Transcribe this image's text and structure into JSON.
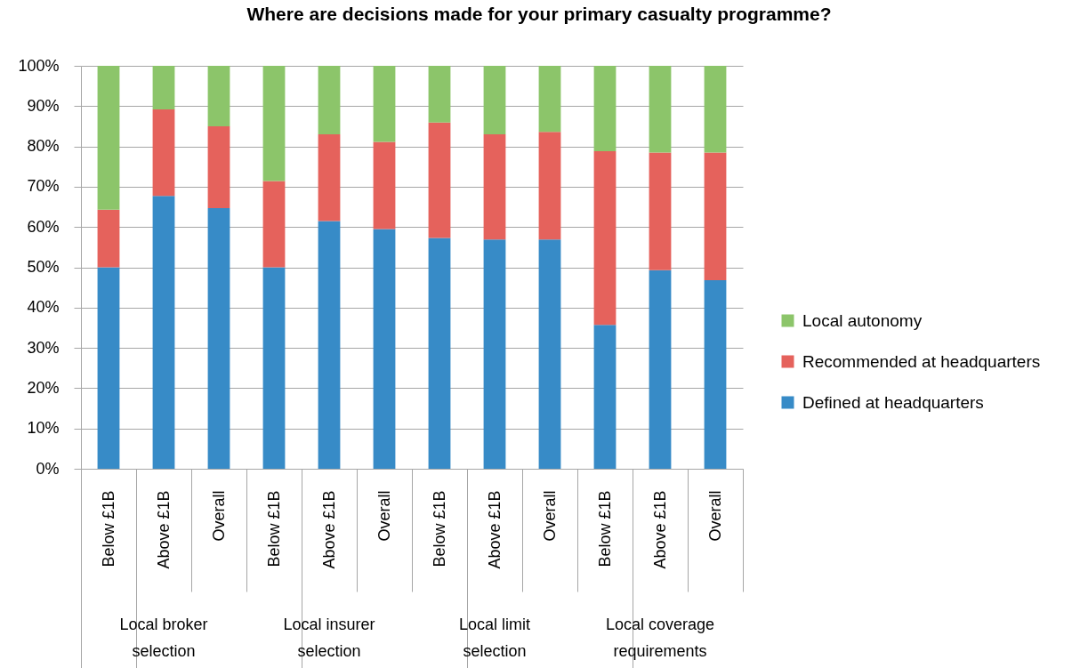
{
  "chart_data": {
    "type": "bar",
    "title": "Where are decisions made for your primary casualty programme?",
    "categories": [
      "Below £1B",
      "Above £1B",
      "Overall",
      "Below £1B",
      "Above £1B",
      "Overall",
      "Below £1B",
      "Above £1B",
      "Overall",
      "Below £1B",
      "Above £1B",
      "Overall"
    ],
    "series": [
      {
        "name": "Defined at headquarters",
        "color": "#378bc7",
        "values": [
          50,
          67.7,
          64.7,
          50,
          61.5,
          59.5,
          57.3,
          56.9,
          56.9,
          35.7,
          49.3,
          46.8
        ]
      },
      {
        "name": "Recommended at headquarters",
        "color": "#e5625c",
        "values": [
          14.3,
          21.5,
          20.3,
          21.4,
          21.5,
          21.6,
          28.6,
          26.1,
          26.7,
          43.1,
          29.2,
          31.7
        ]
      },
      {
        "name": "Local autonomy",
        "color": "#8cc56a",
        "values": [
          35.7,
          10.8,
          15,
          28.6,
          17,
          18.9,
          14.1,
          17,
          16.4,
          21.2,
          21.5,
          21.5
        ]
      }
    ],
    "stacked": true,
    "ylim": [
      0,
      100
    ],
    "yticks": [
      {
        "value": 0,
        "label": "0%"
      },
      {
        "value": 10,
        "label": "10%"
      },
      {
        "value": 20,
        "label": "20%"
      },
      {
        "value": 30,
        "label": "30%"
      },
      {
        "value": 40,
        "label": "40%"
      },
      {
        "value": 50,
        "label": "50%"
      },
      {
        "value": 60,
        "label": "60%"
      },
      {
        "value": 70,
        "label": "70%"
      },
      {
        "value": 80,
        "label": "80%"
      },
      {
        "value": 90,
        "label": "90%"
      },
      {
        "value": 100,
        "label": "100%"
      }
    ],
    "grid": "y",
    "legend": "right",
    "annotations": [
      "Local broker selection",
      "Local insurer selection",
      "Local limit selection",
      "Local coverage requirements"
    ]
  }
}
